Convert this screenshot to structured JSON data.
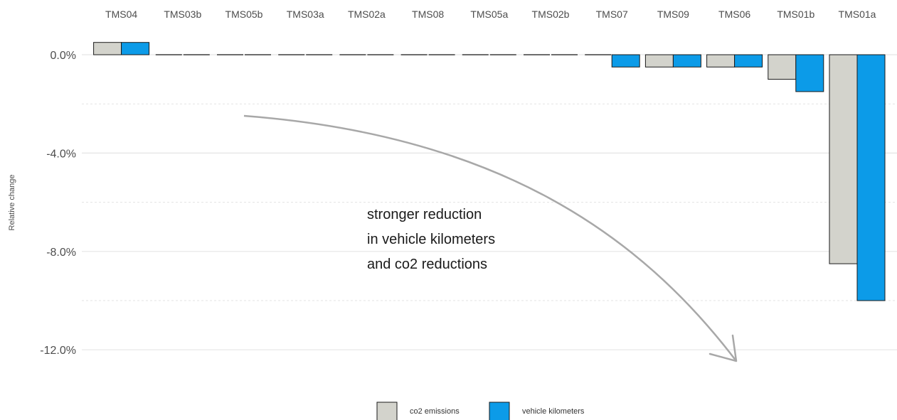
{
  "chart_data": {
    "type": "bar",
    "ylabel": "Relative change",
    "categories": [
      "TMS04",
      "TMS03b",
      "TMS05b",
      "TMS03a",
      "TMS02a",
      "TMS08",
      "TMS05a",
      "TMS02b",
      "TMS07",
      "TMS09",
      "TMS06",
      "TMS01b",
      "TMS01a"
    ],
    "series": [
      {
        "name": "co2 emissions",
        "color": "#d3d3cc",
        "values": [
          0.5,
          0.0,
          0.0,
          0.0,
          0.0,
          0.0,
          0.0,
          0.0,
          0.0,
          -0.5,
          -0.5,
          -1.0,
          -8.5
        ]
      },
      {
        "name": "vehicle kilometers",
        "color": "#0c9be8",
        "values": [
          0.5,
          0.0,
          0.0,
          0.0,
          0.0,
          0.0,
          0.0,
          0.0,
          -0.5,
          -0.5,
          -0.5,
          -1.5,
          -10.0
        ]
      }
    ],
    "ylim": [
      -13.0,
      0.6
    ],
    "y_ticks": [
      0,
      -4,
      -8,
      -12
    ],
    "y_tick_labels": [
      "0.0%",
      "-4.0%",
      "-8.0%",
      "-12.0%"
    ],
    "y_minor_grid": [
      -2,
      -6,
      -10
    ],
    "category_labels_position": "top",
    "legend_position": "bottom",
    "grid": true,
    "annotation": {
      "lines": [
        "stronger reduction",
        "in vehicle kilometers",
        "and co2 reductions"
      ]
    }
  }
}
